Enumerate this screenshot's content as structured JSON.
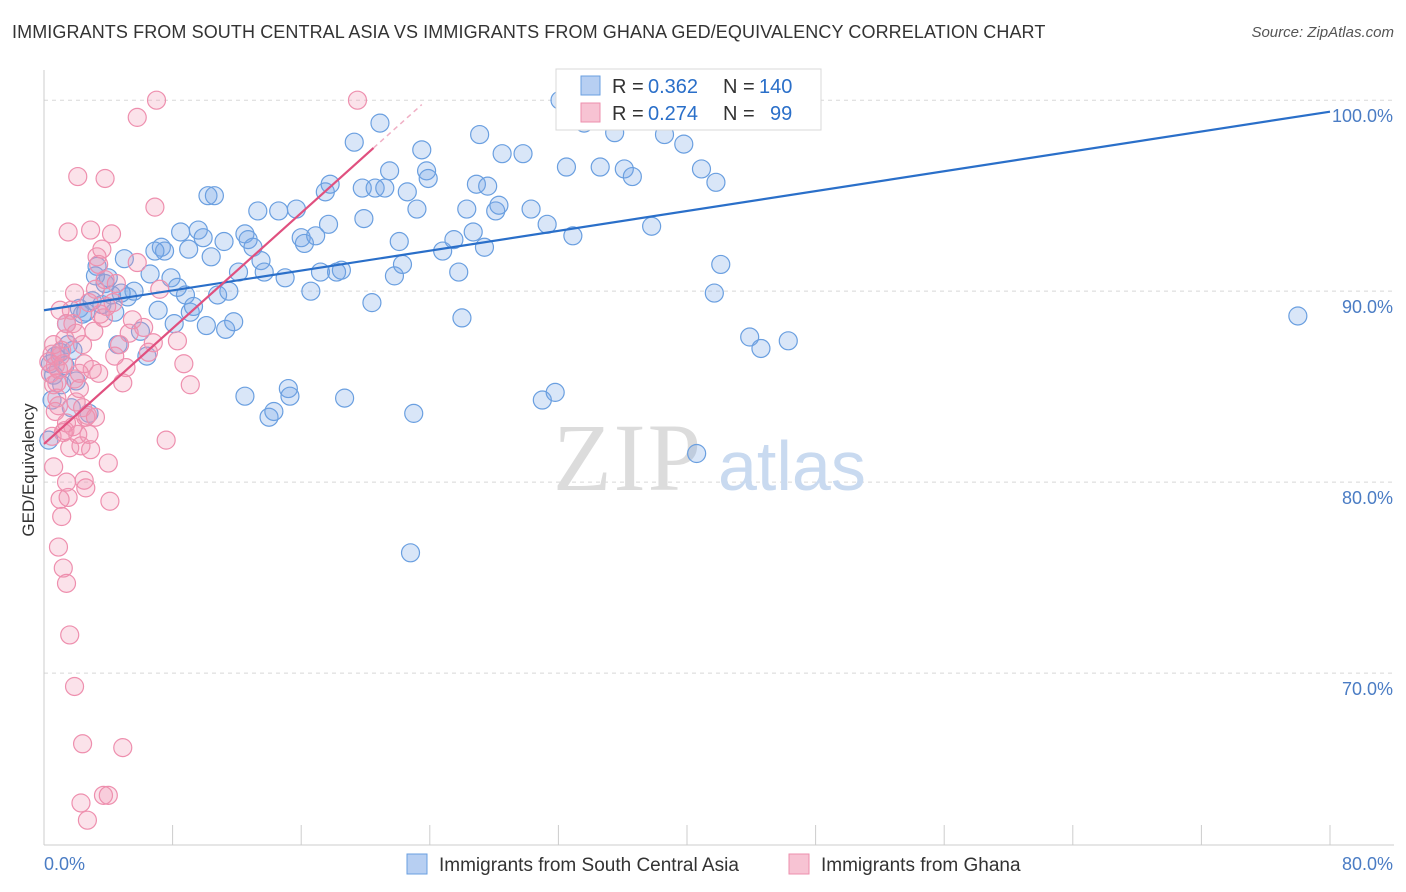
{
  "title": "IMMIGRANTS FROM SOUTH CENTRAL ASIA VS IMMIGRANTS FROM GHANA GED/EQUIVALENCY CORRELATION CHART",
  "source": "Source: ZipAtlas.com",
  "watermark": {
    "zip": "ZIP",
    "atlas": "atlas"
  },
  "colors": {
    "blue": "#6a9fe0",
    "blue_fill": "rgba(120,165,230,0.28)",
    "blue_line": "#2a6fc9",
    "pink": "#ee8fae",
    "pink_fill": "rgba(240,150,180,0.28)",
    "pink_line": "#e0507f",
    "axis_text": "#4a7cc4",
    "grid": "#d8d8d8"
  },
  "legend_box": {
    "blue": {
      "r_label": "R = ",
      "r_value": "0.362",
      "n_label": "N = ",
      "n_value": "140"
    },
    "pink": {
      "r_label": "R = ",
      "r_value": "0.274",
      "n_label": "N = ",
      "n_value": "99"
    }
  },
  "chart_data": {
    "type": "scatter",
    "xlabel": "",
    "ylabel": "GED/Equivalency",
    "xlim": [
      0,
      80
    ],
    "ylim": [
      61,
      102
    ],
    "x_tick_labels": [
      "0.0%",
      "80.0%"
    ],
    "y_ticks": [
      70,
      80,
      90,
      100
    ],
    "y_tick_labels": [
      "70.0%",
      "80.0%",
      "90.0%",
      "100.0%"
    ],
    "grid": "horizontal dashed",
    "legend_position": "bottom",
    "series": [
      {
        "name": "Immigrants from South Central Asia",
        "color": "blue",
        "trend": {
          "x": [
            0,
            80
          ],
          "y": [
            89.0,
            99.4
          ]
        },
        "points": [
          [
            0.3,
            82.2
          ],
          [
            0.5,
            84.3
          ],
          [
            0.6,
            85.6
          ],
          [
            0.7,
            86.6
          ],
          [
            1.0,
            86.8
          ],
          [
            1.1,
            85.1
          ],
          [
            1.3,
            86.1
          ],
          [
            1.4,
            88.3
          ],
          [
            1.5,
            87.2
          ],
          [
            1.7,
            83.9
          ],
          [
            2.0,
            85.3
          ],
          [
            2.2,
            89.1
          ],
          [
            2.4,
            88.8
          ],
          [
            2.6,
            88.9
          ],
          [
            2.8,
            83.6
          ],
          [
            3.0,
            89.5
          ],
          [
            3.3,
            91.3
          ],
          [
            3.6,
            89.3
          ],
          [
            3.8,
            90.4
          ],
          [
            4.0,
            90.7
          ],
          [
            4.2,
            89.8
          ],
          [
            4.4,
            88.9
          ],
          [
            4.6,
            87.2
          ],
          [
            5.0,
            91.7
          ],
          [
            5.2,
            89.7
          ],
          [
            5.6,
            90.0
          ],
          [
            6.0,
            87.9
          ],
          [
            6.4,
            86.6
          ],
          [
            6.6,
            90.9
          ],
          [
            7.1,
            89.0
          ],
          [
            7.3,
            92.3
          ],
          [
            7.5,
            92.1
          ],
          [
            7.9,
            90.7
          ],
          [
            8.1,
            88.3
          ],
          [
            8.5,
            93.1
          ],
          [
            8.8,
            89.8
          ],
          [
            9.0,
            92.2
          ],
          [
            9.1,
            88.9
          ],
          [
            9.3,
            89.2
          ],
          [
            9.6,
            93.2
          ],
          [
            9.9,
            92.8
          ],
          [
            10.1,
            88.2
          ],
          [
            10.4,
            91.8
          ],
          [
            10.2,
            95.0
          ],
          [
            10.6,
            95.0
          ],
          [
            10.8,
            89.8
          ],
          [
            11.2,
            92.6
          ],
          [
            11.3,
            88.0
          ],
          [
            11.5,
            90.0
          ],
          [
            11.8,
            88.4
          ],
          [
            12.1,
            91.0
          ],
          [
            12.5,
            93.0
          ],
          [
            12.7,
            92.7
          ],
          [
            13.0,
            92.3
          ],
          [
            12.5,
            84.5
          ],
          [
            13.3,
            94.2
          ],
          [
            13.5,
            91.6
          ],
          [
            13.7,
            91.0
          ],
          [
            14.0,
            83.4
          ],
          [
            14.3,
            83.7
          ],
          [
            14.6,
            94.2
          ],
          [
            15.0,
            90.7
          ],
          [
            15.2,
            84.9
          ],
          [
            15.3,
            84.5
          ],
          [
            15.7,
            94.3
          ],
          [
            16.0,
            92.8
          ],
          [
            16.2,
            92.5
          ],
          [
            16.6,
            90.0
          ],
          [
            16.9,
            92.9
          ],
          [
            17.2,
            91.0
          ],
          [
            17.5,
            95.2
          ],
          [
            17.7,
            93.5
          ],
          [
            17.8,
            95.6
          ],
          [
            18.2,
            91.0
          ],
          [
            18.5,
            91.1
          ],
          [
            18.7,
            84.4
          ],
          [
            19.3,
            97.8
          ],
          [
            19.8,
            95.4
          ],
          [
            19.9,
            93.8
          ],
          [
            20.4,
            89.4
          ],
          [
            20.6,
            95.4
          ],
          [
            20.9,
            98.8
          ],
          [
            21.2,
            95.4
          ],
          [
            21.5,
            96.3
          ],
          [
            21.8,
            90.8
          ],
          [
            22.1,
            92.6
          ],
          [
            22.3,
            91.4
          ],
          [
            22.6,
            95.2
          ],
          [
            23.0,
            83.6
          ],
          [
            23.2,
            94.3
          ],
          [
            23.5,
            97.4
          ],
          [
            23.8,
            96.3
          ],
          [
            23.9,
            95.9
          ],
          [
            24.8,
            92.1
          ],
          [
            25.5,
            92.7
          ],
          [
            25.8,
            91.0
          ],
          [
            26.0,
            88.6
          ],
          [
            26.3,
            94.3
          ],
          [
            26.7,
            93.1
          ],
          [
            26.9,
            95.6
          ],
          [
            27.1,
            98.2
          ],
          [
            27.4,
            92.3
          ],
          [
            27.6,
            95.5
          ],
          [
            28.1,
            94.2
          ],
          [
            28.3,
            94.5
          ],
          [
            28.5,
            97.2
          ],
          [
            29.8,
            97.2
          ],
          [
            30.3,
            94.3
          ],
          [
            31.0,
            84.3
          ],
          [
            31.8,
            84.7
          ],
          [
            31.3,
            93.5
          ],
          [
            32.1,
            100.0
          ],
          [
            32.5,
            96.5
          ],
          [
            32.9,
            92.9
          ],
          [
            33.6,
            98.8
          ],
          [
            34.6,
            96.5
          ],
          [
            35.5,
            98.3
          ],
          [
            36.1,
            96.4
          ],
          [
            36.6,
            96.0
          ],
          [
            37.8,
            93.4
          ],
          [
            38.6,
            98.2
          ],
          [
            39.8,
            97.7
          ],
          [
            40.6,
            81.5
          ],
          [
            40.9,
            96.4
          ],
          [
            41.7,
            89.9
          ],
          [
            42.1,
            91.4
          ],
          [
            41.8,
            95.7
          ],
          [
            43.9,
            87.6
          ],
          [
            44.6,
            87.0
          ],
          [
            46.3,
            87.4
          ],
          [
            22.8,
            76.3
          ],
          [
            78.0,
            88.7
          ],
          [
            0.4,
            86.2
          ],
          [
            1.8,
            86.9
          ],
          [
            3.2,
            90.8
          ],
          [
            4.8,
            89.9
          ],
          [
            6.9,
            92.1
          ],
          [
            8.3,
            90.2
          ]
        ]
      },
      {
        "name": "Immigrants from Ghana",
        "color": "pink",
        "trend": {
          "x": [
            0,
            20.5
          ],
          "y": [
            82.0,
            97.5
          ]
        },
        "points": [
          [
            0.3,
            86.3
          ],
          [
            0.4,
            85.7
          ],
          [
            0.5,
            86.7
          ],
          [
            0.6,
            85.1
          ],
          [
            0.7,
            86.1
          ],
          [
            0.8,
            84.4
          ],
          [
            0.9,
            85.9
          ],
          [
            1.0,
            86.6
          ],
          [
            0.5,
            82.4
          ],
          [
            0.6,
            80.8
          ],
          [
            0.7,
            83.7
          ],
          [
            0.8,
            85.2
          ],
          [
            1.1,
            86.9
          ],
          [
            1.2,
            86.2
          ],
          [
            1.3,
            82.7
          ],
          [
            1.4,
            83.1
          ],
          [
            1.0,
            79.1
          ],
          [
            1.1,
            78.2
          ],
          [
            1.4,
            80.0
          ],
          [
            1.5,
            79.2
          ],
          [
            1.6,
            81.8
          ],
          [
            1.7,
            89.0
          ],
          [
            1.8,
            88.3
          ],
          [
            1.9,
            85.4
          ],
          [
            2.0,
            84.2
          ],
          [
            2.1,
            82.5
          ],
          [
            2.2,
            84.9
          ],
          [
            2.3,
            81.9
          ],
          [
            2.4,
            83.9
          ],
          [
            2.5,
            80.1
          ],
          [
            2.6,
            79.7
          ],
          [
            2.7,
            83.5
          ],
          [
            2.8,
            82.5
          ],
          [
            2.9,
            81.7
          ],
          [
            3.0,
            85.9
          ],
          [
            3.1,
            87.9
          ],
          [
            3.2,
            90.1
          ],
          [
            3.3,
            91.8
          ],
          [
            3.4,
            91.4
          ],
          [
            3.5,
            88.8
          ],
          [
            3.6,
            92.2
          ],
          [
            3.7,
            88.6
          ],
          [
            3.8,
            90.6
          ],
          [
            3.9,
            89.2
          ],
          [
            4.0,
            81.0
          ],
          [
            4.1,
            79.0
          ],
          [
            4.3,
            89.4
          ],
          [
            4.5,
            90.4
          ],
          [
            4.7,
            87.2
          ],
          [
            4.9,
            85.2
          ],
          [
            5.1,
            86.0
          ],
          [
            5.5,
            88.5
          ],
          [
            5.8,
            91.5
          ],
          [
            6.2,
            88.1
          ],
          [
            6.8,
            87.3
          ],
          [
            7.2,
            90.1
          ],
          [
            7.6,
            82.2
          ],
          [
            8.3,
            87.4
          ],
          [
            8.7,
            86.2
          ],
          [
            9.1,
            85.1
          ],
          [
            1.5,
            93.1
          ],
          [
            2.1,
            96.0
          ],
          [
            2.9,
            93.2
          ],
          [
            3.8,
            95.9
          ],
          [
            4.2,
            93.0
          ],
          [
            5.8,
            99.1
          ],
          [
            6.9,
            94.4
          ],
          [
            7.0,
            100.0
          ],
          [
            19.5,
            100.0
          ],
          [
            1.9,
            89.9
          ],
          [
            2.4,
            87.2
          ],
          [
            2.8,
            89.4
          ],
          [
            0.9,
            76.6
          ],
          [
            1.2,
            75.5
          ],
          [
            1.4,
            74.7
          ],
          [
            1.6,
            72.0
          ],
          [
            1.9,
            69.3
          ],
          [
            2.4,
            66.3
          ],
          [
            2.3,
            63.2
          ],
          [
            2.7,
            62.3
          ],
          [
            3.7,
            63.6
          ],
          [
            4.0,
            63.6
          ],
          [
            4.9,
            66.1
          ],
          [
            1.0,
            89.0
          ],
          [
            1.4,
            88.3
          ],
          [
            1.8,
            82.9
          ],
          [
            2.2,
            85.7
          ],
          [
            2.6,
            83.4
          ],
          [
            3.2,
            83.4
          ],
          [
            0.6,
            87.2
          ],
          [
            0.9,
            84.0
          ],
          [
            1.3,
            87.5
          ],
          [
            2.0,
            87.8
          ],
          [
            2.5,
            86.2
          ],
          [
            3.4,
            85.7
          ],
          [
            4.4,
            86.6
          ],
          [
            5.3,
            87.8
          ],
          [
            6.5,
            86.8
          ],
          [
            1.2,
            82.6
          ]
        ]
      }
    ]
  },
  "bottom_legend": {
    "blue_label": "Immigrants from South Central Asia",
    "pink_label": "Immigrants from Ghana"
  }
}
